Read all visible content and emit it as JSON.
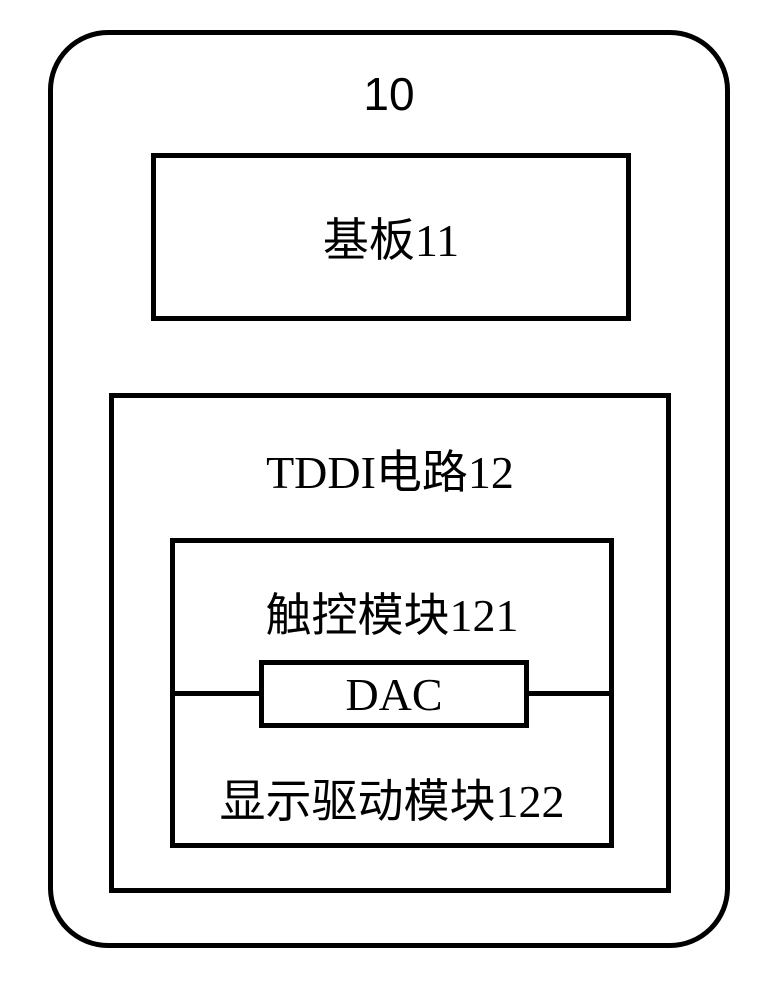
{
  "colors": {
    "stroke": "#000000",
    "background": "#ffffff"
  },
  "diagram": {
    "type": "block-diagram",
    "outer": {
      "label": "10",
      "border_width": 5,
      "border_radius": 60
    },
    "substrate": {
      "label": "基板11",
      "border_width": 5
    },
    "tddi": {
      "label": "TDDI电路12",
      "border_width": 5,
      "subsys": {
        "border_width": 5,
        "touch_label": "触控模块121",
        "display_label": "显示驱动模块122",
        "dac": {
          "label": "DAC",
          "border_width": 5
        }
      }
    },
    "font_size_pt": 34
  }
}
